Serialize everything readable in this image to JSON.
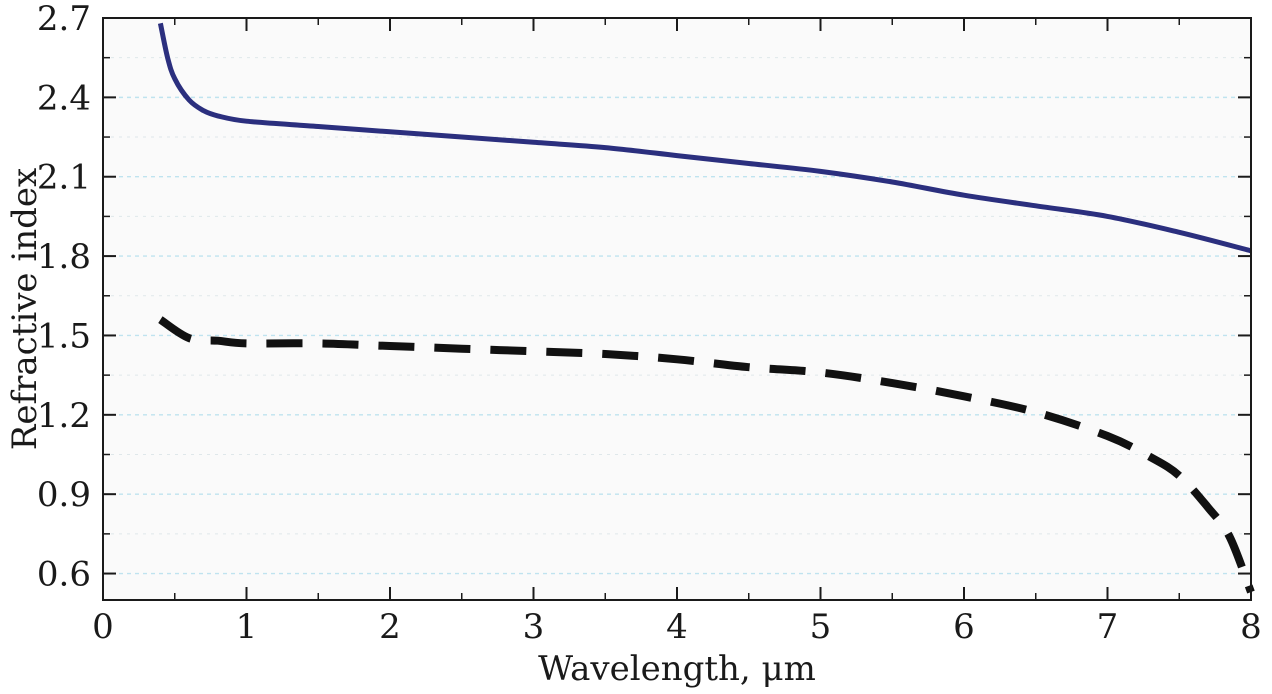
{
  "chart_data": {
    "type": "line",
    "title": "",
    "xlabel": "Wavelength, μm",
    "ylabel": "Refractive index",
    "xlim": [
      0,
      8
    ],
    "ylim": [
      0.5,
      2.7
    ],
    "x_ticks": [
      0,
      1,
      2,
      3,
      4,
      5,
      6,
      7,
      8
    ],
    "x_tick_labels": [
      "0",
      "1",
      "2",
      "3",
      "4",
      "5",
      "6",
      "7",
      "8"
    ],
    "y_ticks": [
      0.6,
      0.9,
      1.2,
      1.5,
      1.8,
      2.1,
      2.4,
      2.7
    ],
    "y_tick_labels": [
      "0.6",
      "0.9",
      "1.2",
      "1.5",
      "1.8",
      "2.1",
      "2.4",
      "2.7"
    ],
    "grid": true,
    "legend": "none",
    "colors": {
      "solid_series": "#2b2f7e",
      "dashed_series": "#111111",
      "grid": "#bfe3ef",
      "plot_background": "#fafafa"
    },
    "series": [
      {
        "style": "solid",
        "x": [
          0.4,
          0.45,
          0.5,
          0.6,
          0.7,
          0.8,
          1.0,
          1.5,
          2.0,
          2.5,
          3.0,
          3.5,
          4.0,
          4.5,
          5.0,
          5.5,
          6.0,
          6.5,
          7.0,
          7.5,
          8.0
        ],
        "y": [
          2.68,
          2.55,
          2.47,
          2.39,
          2.35,
          2.33,
          2.31,
          2.29,
          2.27,
          2.25,
          2.23,
          2.21,
          2.18,
          2.15,
          2.12,
          2.08,
          2.03,
          1.99,
          1.95,
          1.89,
          1.82
        ]
      },
      {
        "style": "dashed",
        "x": [
          0.4,
          0.6,
          0.8,
          1.0,
          1.5,
          2.0,
          2.5,
          3.0,
          3.5,
          4.0,
          4.5,
          5.0,
          5.5,
          6.0,
          6.5,
          7.0,
          7.3,
          7.5,
          7.7,
          7.85,
          8.0
        ],
        "y": [
          1.56,
          1.49,
          1.48,
          1.47,
          1.47,
          1.46,
          1.45,
          1.44,
          1.43,
          1.41,
          1.38,
          1.36,
          1.32,
          1.27,
          1.21,
          1.12,
          1.04,
          0.97,
          0.85,
          0.74,
          0.53
        ]
      }
    ]
  }
}
